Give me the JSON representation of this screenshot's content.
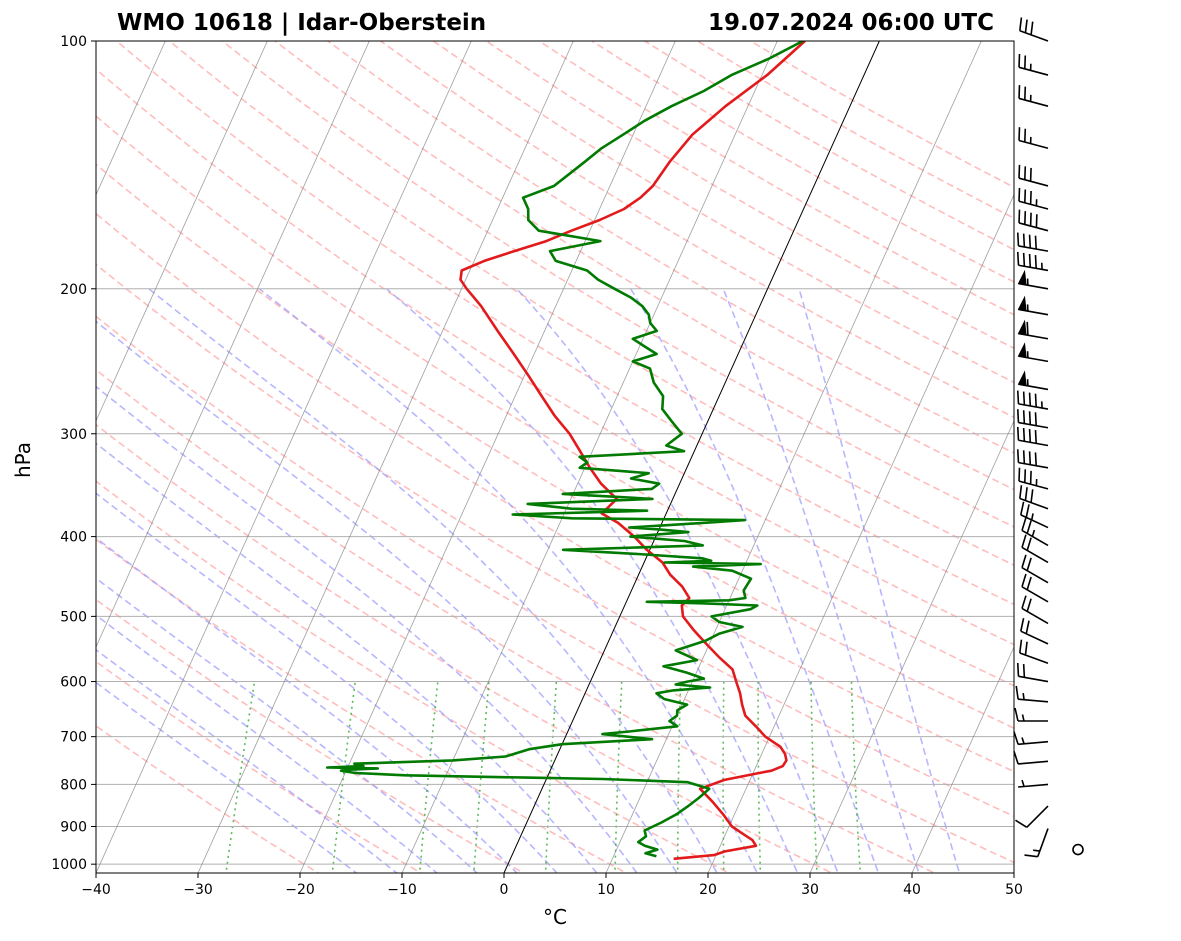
{
  "chart_data": {
    "type": "line",
    "title_left": "WMO 10618 | Idar-Oberstein",
    "title_right": "19.07.2024 06:00 UTC",
    "xlabel": "°C",
    "ylabel": "hPa",
    "xlim": [
      -40,
      50
    ],
    "ylim": [
      1025,
      100
    ],
    "y_scale": "log",
    "x_ticks": [
      -40,
      -30,
      -20,
      -10,
      0,
      10,
      20,
      30,
      40,
      50
    ],
    "y_ticks": [
      100,
      200,
      300,
      400,
      500,
      600,
      700,
      800,
      900,
      1000
    ],
    "x_tick_labels": [
      "−40",
      "−30",
      "−20",
      "−10",
      "0",
      "10",
      "20",
      "30",
      "40",
      "50"
    ],
    "y_tick_labels": [
      "100",
      "200",
      "300",
      "400",
      "500",
      "600",
      "700",
      "800",
      "900",
      "1000"
    ],
    "grid": true,
    "colors": {
      "temperature": "#e31a1c",
      "dewpoint": "#007a00",
      "dry_adiabats": "#ff9999",
      "moist_adiabats": "#9999ff",
      "mixing_ratio": "#33aa33",
      "isotherms": "#7f7f7f",
      "grid": "#b0b0b0"
    },
    "series": [
      {
        "key": "temperature",
        "p": [
          985,
          975,
          965,
          950,
          935,
          920,
          900,
          870,
          840,
          810,
          790,
          775,
          770,
          760,
          748,
          735,
          720,
          700,
          680,
          660,
          640,
          620,
          600,
          580,
          560,
          540,
          520,
          500,
          485,
          475,
          460,
          445,
          430,
          415,
          400,
          385,
          375,
          360,
          345,
          330,
          315,
          300,
          285,
          270,
          255,
          240,
          225,
          210,
          200,
          195,
          190,
          185,
          180,
          175,
          170,
          165,
          160,
          155,
          150,
          140,
          130,
          120,
          110,
          100
        ],
        "t": [
          16.0,
          19.8,
          20.7,
          23.5,
          22.9,
          21.8,
          20.3,
          18.9,
          17.3,
          15.5,
          17.5,
          20.6,
          21.7,
          22.6,
          22.7,
          22.3,
          21.5,
          19.6,
          18.2,
          16.7,
          15.9,
          15.2,
          14.3,
          13.4,
          11.5,
          9.7,
          7.9,
          6.2,
          5.6,
          6.0,
          4.8,
          3.1,
          1.8,
          -0.3,
          -2.1,
          -4.3,
          -6.3,
          -5.5,
          -7.7,
          -9.5,
          -11.2,
          -13.0,
          -15.3,
          -17.4,
          -19.6,
          -22.0,
          -24.6,
          -27.3,
          -29.5,
          -30.5,
          -30.8,
          -29.0,
          -26.5,
          -23.8,
          -21.8,
          -19.5,
          -17.6,
          -16.5,
          -15.8,
          -15.2,
          -14.2,
          -12.2,
          -9.5,
          -7.3
        ]
      },
      {
        "key": "dewpoint",
        "p": [
          978,
          970,
          960,
          950,
          940,
          925,
          910,
          890,
          870,
          850,
          830,
          810,
          795,
          788,
          785,
          780,
          775,
          770,
          768,
          765,
          763,
          760,
          755,
          748,
          740,
          725,
          715,
          705,
          695,
          690,
          680,
          670,
          660,
          650,
          640,
          630,
          620,
          615,
          610,
          605,
          600,
          595,
          585,
          575,
          565,
          550,
          535,
          525,
          515,
          508,
          500,
          490,
          485,
          482,
          480,
          478,
          475,
          465,
          450,
          440,
          435,
          432,
          430,
          428,
          425,
          420,
          415,
          410,
          405,
          400,
          395,
          392,
          390,
          385,
          382,
          380,
          376,
          372,
          370,
          365,
          360,
          355,
          350,
          345,
          340,
          335,
          330,
          325,
          320,
          315,
          310,
          300,
          290,
          280,
          270,
          260,
          250,
          245,
          240,
          235,
          230,
          225,
          220,
          215,
          210,
          205,
          200,
          195,
          190,
          185,
          180,
          175,
          170,
          165,
          160,
          155,
          150,
          145,
          140,
          135,
          130,
          125,
          120,
          115,
          110,
          105,
          100
        ],
        "t": [
          14.2,
          13.0,
          14.0,
          12.6,
          11.8,
          12.3,
          11.9,
          13.2,
          14.3,
          15.1,
          15.8,
          16.4,
          14.0,
          5.5,
          -2.0,
          -14.0,
          -19.0,
          -20.5,
          -20.0,
          -17.0,
          -22.0,
          -18.5,
          -19.5,
          -10.0,
          -5.0,
          -3.0,
          0.0,
          8.6,
          3.5,
          6.0,
          10.5,
          9.5,
          10.0,
          9.8,
          10.5,
          8.0,
          7.0,
          8.5,
          12.0,
          8.5,
          9.5,
          11.0,
          9.0,
          6.5,
          9.5,
          7.0,
          9.5,
          10.5,
          12.5,
          10.0,
          9.0,
          12.5,
          13.0,
          7.5,
          2.0,
          10.0,
          11.5,
          11.0,
          11.2,
          9.0,
          5.0,
          11.5,
          2.0,
          6.5,
          5.5,
          -1.0,
          -8.5,
          5.0,
          3.0,
          -2.5,
          3.0,
          0.0,
          -3.0,
          4.0,
          8.0,
          -9.0,
          -15.0,
          -2.0,
          -9.5,
          -14.0,
          -2.0,
          -11.0,
          -2.5,
          -2.0,
          -5.0,
          -3.5,
          -10.5,
          -10.0,
          -11.0,
          -1.0,
          -3.0,
          -2.0,
          -3.5,
          -5.0,
          -5.5,
          -7.0,
          -8.0,
          -10.0,
          -8.0,
          -9.5,
          -11.0,
          -9.0,
          -10.0,
          -10.5,
          -11.5,
          -13.0,
          -15.0,
          -17.0,
          -18.5,
          -22.0,
          -23.0,
          -18.5,
          -25.0,
          -26.5,
          -27.0,
          -28.0,
          -25.5,
          -24.5,
          -23.5,
          -22.5,
          -21.0,
          -19.5,
          -17.5,
          -15.0,
          -13.0,
          -10.0,
          -7.5
        ]
      }
    ],
    "wind_barbs": [
      {
        "p": 100,
        "dir": 290,
        "speed": 30
      },
      {
        "p": 110,
        "dir": 285,
        "speed": 25
      },
      {
        "p": 120,
        "dir": 285,
        "speed": 25
      },
      {
        "p": 135,
        "dir": 285,
        "speed": 25
      },
      {
        "p": 150,
        "dir": 285,
        "speed": 30
      },
      {
        "p": 160,
        "dir": 285,
        "speed": 35
      },
      {
        "p": 170,
        "dir": 285,
        "speed": 40
      },
      {
        "p": 180,
        "dir": 280,
        "speed": 40
      },
      {
        "p": 190,
        "dir": 280,
        "speed": 45
      },
      {
        "p": 200,
        "dir": 280,
        "speed": 55
      },
      {
        "p": 215,
        "dir": 280,
        "speed": 55
      },
      {
        "p": 230,
        "dir": 280,
        "speed": 60
      },
      {
        "p": 245,
        "dir": 280,
        "speed": 55
      },
      {
        "p": 265,
        "dir": 280,
        "speed": 55
      },
      {
        "p": 280,
        "dir": 280,
        "speed": 45
      },
      {
        "p": 295,
        "dir": 280,
        "speed": 40
      },
      {
        "p": 310,
        "dir": 280,
        "speed": 40
      },
      {
        "p": 330,
        "dir": 280,
        "speed": 40
      },
      {
        "p": 350,
        "dir": 285,
        "speed": 35
      },
      {
        "p": 370,
        "dir": 290,
        "speed": 30
      },
      {
        "p": 390,
        "dir": 295,
        "speed": 25
      },
      {
        "p": 410,
        "dir": 300,
        "speed": 25
      },
      {
        "p": 430,
        "dir": 300,
        "speed": 20
      },
      {
        "p": 455,
        "dir": 300,
        "speed": 20
      },
      {
        "p": 480,
        "dir": 300,
        "speed": 20
      },
      {
        "p": 510,
        "dir": 300,
        "speed": 20
      },
      {
        "p": 540,
        "dir": 295,
        "speed": 20
      },
      {
        "p": 570,
        "dir": 290,
        "speed": 20
      },
      {
        "p": 600,
        "dir": 280,
        "speed": 20
      },
      {
        "p": 635,
        "dir": 275,
        "speed": 15
      },
      {
        "p": 670,
        "dir": 270,
        "speed": 15
      },
      {
        "p": 710,
        "dir": 265,
        "speed": 15
      },
      {
        "p": 750,
        "dir": 265,
        "speed": 10
      },
      {
        "p": 800,
        "dir": 265,
        "speed": 5
      },
      {
        "p": 850,
        "dir": 225,
        "speed": 10
      },
      {
        "p": 905,
        "dir": 200,
        "speed": 15
      },
      {
        "p": 960,
        "dir": 0,
        "speed": 0
      }
    ]
  }
}
